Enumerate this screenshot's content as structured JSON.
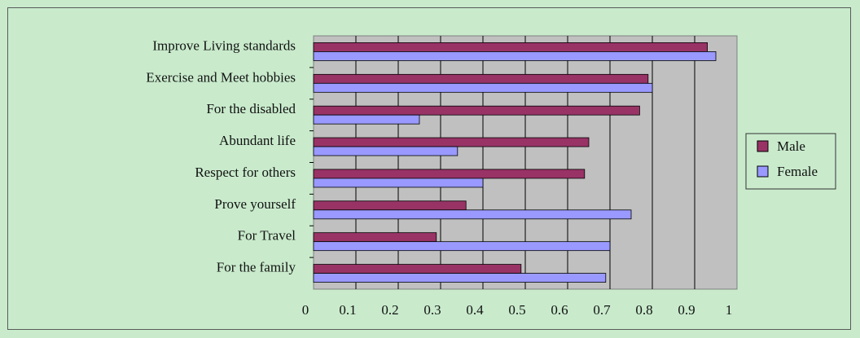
{
  "chart_data": {
    "type": "bar",
    "orientation": "horizontal",
    "categories": [
      "Improve Living standards",
      "Exercise and Meet hobbies",
      "For the disabled",
      "Abundant life",
      "Respect for others",
      "Prove yourself",
      "For Travel",
      "For the family"
    ],
    "series": [
      {
        "name": "Male",
        "color": "#993366",
        "values": [
          0.93,
          0.79,
          0.77,
          0.65,
          0.64,
          0.36,
          0.29,
          0.49
        ]
      },
      {
        "name": "Female",
        "color": "#9999ff",
        "values": [
          0.95,
          0.8,
          0.25,
          0.34,
          0.4,
          0.75,
          0.7,
          0.69
        ]
      }
    ],
    "x_ticks": [
      "0",
      "0.1",
      "0.2",
      "0.3",
      "0.4",
      "0.5",
      "0.6",
      "0.7",
      "0.8",
      "0.9",
      "1"
    ],
    "xlim": [
      0,
      1
    ],
    "grid": true,
    "legend": "right",
    "plot_background": "#c0c0c0"
  }
}
